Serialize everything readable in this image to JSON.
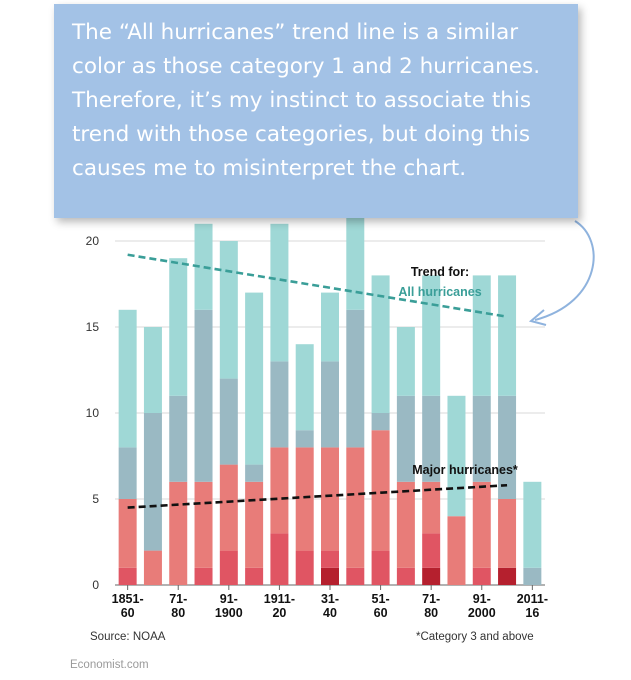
{
  "callout": {
    "text": "The “All hurricanes” trend line is a similar color as those category 1 and 2 hurricanes. Therefore, it’s my instinct to associate this trend with those categories, but doing this causes me to misinterpret the chart."
  },
  "source": "Source: NOAA",
  "footnote": "*Category 3 and above",
  "credit": "Economist.com",
  "chart_data": {
    "type": "bar",
    "stacked": true,
    "categories": [
      [
        "1851-",
        "60"
      ],
      [
        "",
        ""
      ],
      [
        "71-",
        "80"
      ],
      [
        "",
        ""
      ],
      [
        "91-",
        "1900"
      ],
      [
        "",
        ""
      ],
      [
        "1911-",
        "20"
      ],
      [
        "",
        ""
      ],
      [
        "31-",
        "40"
      ],
      [
        "",
        ""
      ],
      [
        "51-",
        "60"
      ],
      [
        "",
        ""
      ],
      [
        "71-",
        "80"
      ],
      [
        "",
        ""
      ],
      [
        "91-",
        "2000"
      ],
      [
        "",
        ""
      ],
      [
        "2011-",
        "16"
      ]
    ],
    "series": [
      {
        "color": "#b5202e",
        "values": [
          0,
          0,
          0,
          0,
          0,
          0,
          0,
          0,
          1,
          0,
          0,
          0,
          1,
          0,
          0,
          1,
          0
        ]
      },
      {
        "color": "#e05563",
        "values": [
          1,
          0,
          0,
          1,
          2,
          1,
          3,
          2,
          1,
          1,
          2,
          1,
          2,
          0,
          1,
          0,
          0
        ]
      },
      {
        "color": "#e87c79",
        "values": [
          4,
          2,
          6,
          5,
          5,
          5,
          5,
          6,
          6,
          7,
          7,
          5,
          3,
          4,
          5,
          4,
          0
        ]
      },
      {
        "color": "#9ab9c3",
        "values": [
          3,
          8,
          5,
          10,
          5,
          1,
          5,
          1,
          5,
          8,
          1,
          5,
          5,
          0,
          5,
          6,
          1
        ]
      },
      {
        "color": "#9fd8d6",
        "values": [
          8,
          5,
          8,
          5,
          8,
          10,
          8,
          5,
          4,
          6,
          8,
          4,
          7,
          7,
          7,
          7,
          5
        ]
      }
    ],
    "ylim": [
      0,
      21
    ],
    "yticks": [
      0,
      5,
      10,
      15,
      20
    ],
    "grid": true,
    "trend_lines": [
      {
        "name": "All hurricanes",
        "label_prefix": "Trend for:",
        "color": "#3a9e98",
        "start": 19.2,
        "end": 15.6
      },
      {
        "name": "Major hurricanes*",
        "label_prefix": "",
        "color": "#111111",
        "start": 4.5,
        "end": 5.8
      }
    ]
  }
}
